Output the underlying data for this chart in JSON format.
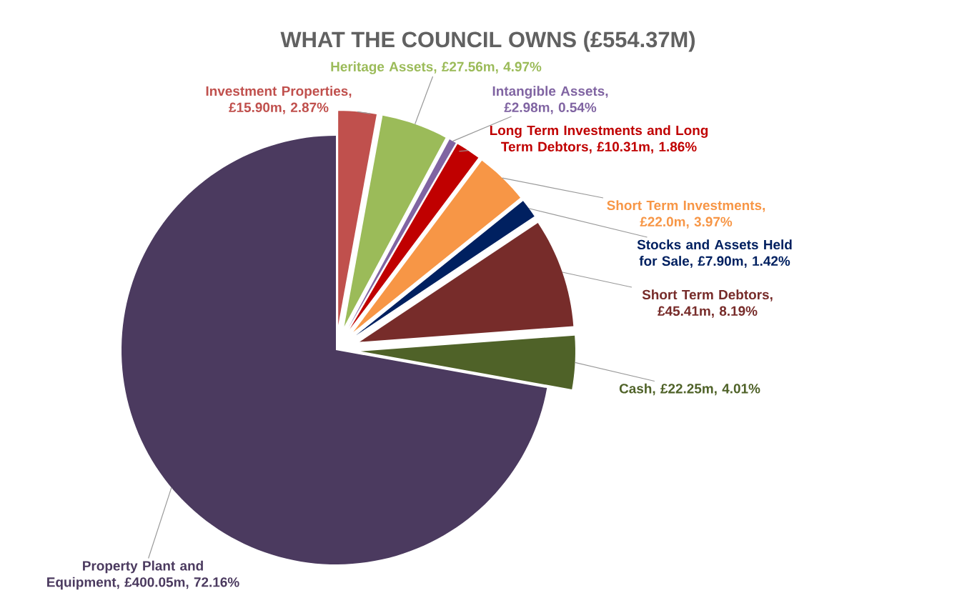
{
  "chart_data": {
    "type": "pie",
    "title": "WHAT THE COUNCIL OWNS (£554.37M)",
    "categories": [
      "Investment Properties",
      "Heritage Assets",
      "Intangible Assets",
      "Long Term Investments and Long Term Debtors",
      "Short Term Investments",
      "Stocks and Assets Held for Sale",
      "Short Term Debtors",
      "Cash",
      "Property Plant and Equipment"
    ],
    "values": [
      2.87,
      4.97,
      0.54,
      1.86,
      3.97,
      1.42,
      8.19,
      4.01,
      72.16
    ],
    "value_labels": [
      ", £15.90m, 2.87%",
      ", £27.56m, 4.97%",
      ", £2.98m, 0.54%",
      ", £10.31m, 1.86%",
      ", £22.0m, 3.97%",
      ", £7.90m, 1.42%",
      ", £45.41m, 8.19%",
      ", £22.25m, 4.01%",
      ", £400.05m, 72.16%"
    ],
    "colors": [
      "#c0504d",
      "#9bbb59",
      "#8064a2",
      "#c00000",
      "#f79646",
      "#002060",
      "#772c2a",
      "#4f6228",
      "#4b3a5f"
    ]
  }
}
